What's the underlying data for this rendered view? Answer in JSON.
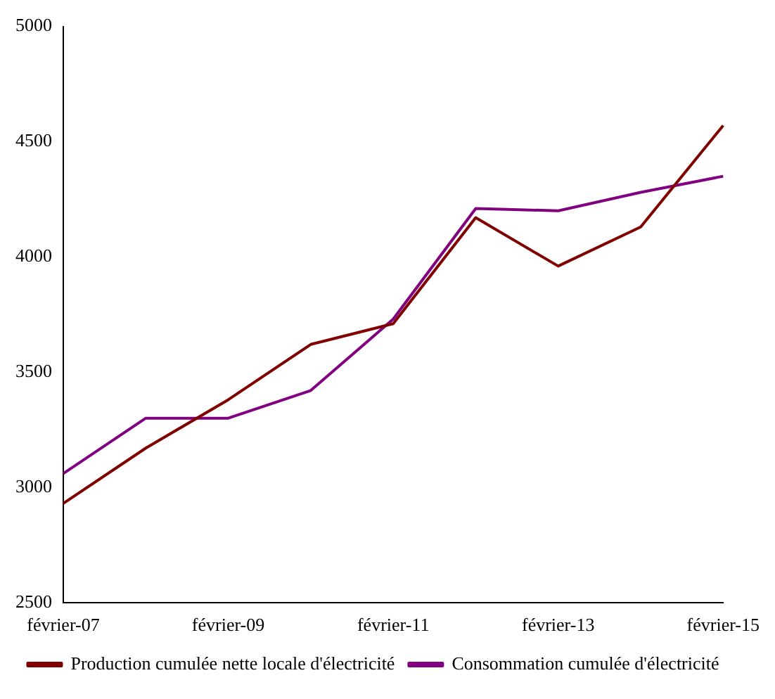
{
  "chart_data": {
    "type": "line",
    "categories": [
      "février-07",
      null,
      "février-09",
      null,
      "février-11",
      null,
      "février-13",
      null,
      "février-15"
    ],
    "series": [
      {
        "name": "Production cumulée nette locale d'électricité",
        "color": "#800000",
        "values": [
          2930,
          3170,
          3380,
          3620,
          3710,
          4170,
          3960,
          4130,
          4570
        ]
      },
      {
        "name": "Consommation cumulée d'électricité",
        "color": "#800080",
        "values": [
          3060,
          3300,
          3300,
          3420,
          3730,
          4210,
          4200,
          4280,
          4350
        ]
      }
    ],
    "ylim": [
      2500,
      5000
    ],
    "yticks": [
      2500,
      3000,
      3500,
      4000,
      4500,
      5000
    ],
    "grid": false,
    "legend": "bottom",
    "marker": "none",
    "line_style": "solid"
  }
}
